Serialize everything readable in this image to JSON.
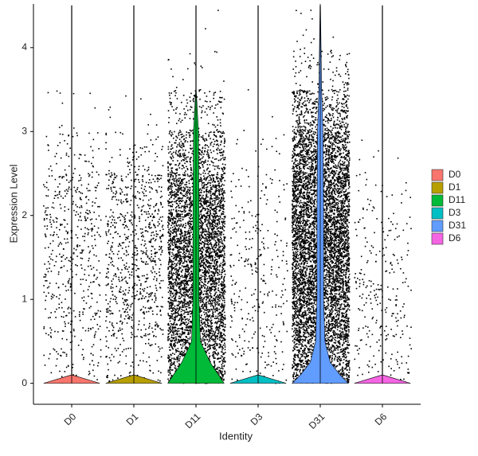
{
  "chart_data": {
    "type": "violin",
    "xlabel": "Identity",
    "ylabel": "Expression Level",
    "categories": [
      "D0",
      "D1",
      "D11",
      "D3",
      "D31",
      "D6"
    ],
    "colors": [
      "#f8766d",
      "#b79f00",
      "#00ba38",
      "#00bfc4",
      "#619cff",
      "#f564e3"
    ],
    "ylim": [
      -0.25,
      4.52
    ],
    "yticks": [
      0,
      1,
      2,
      3,
      4
    ],
    "max": [
      3.48,
      3.25,
      4.2,
      3.03,
      4.52,
      2.73
    ],
    "density_levels": [
      0,
      0.1,
      0.25,
      0.5,
      1,
      2,
      3,
      3.5,
      4.5
    ],
    "density": [
      [
        1,
        0,
        0,
        0,
        0,
        0,
        0,
        0,
        0
      ],
      [
        1,
        0,
        0,
        0,
        0,
        0,
        0,
        0,
        0
      ],
      [
        1,
        0.8,
        0.5,
        0.15,
        0.1,
        0.1,
        0.08,
        0,
        0
      ],
      [
        1,
        0,
        0,
        0,
        0,
        0,
        0,
        0,
        0
      ],
      [
        1,
        0.7,
        0.35,
        0.16,
        0.11,
        0.11,
        0.09,
        0.04,
        0
      ],
      [
        1,
        0,
        0,
        0,
        0,
        0,
        0,
        0,
        0
      ]
    ],
    "point_bins": [
      0,
      0.5,
      1,
      1.5,
      2,
      2.5,
      3,
      3.5,
      4,
      4.5
    ],
    "point_counts": [
      [
        60,
        90,
        110,
        130,
        120,
        50,
        10,
        0,
        0
      ],
      [
        80,
        160,
        200,
        220,
        170,
        60,
        8,
        0,
        0
      ],
      [
        700,
        900,
        1000,
        1000,
        800,
        400,
        120,
        15,
        2
      ],
      [
        60,
        70,
        70,
        60,
        40,
        15,
        3,
        0,
        0
      ],
      [
        800,
        1000,
        1200,
        1300,
        1200,
        900,
        400,
        80,
        10
      ],
      [
        50,
        70,
        70,
        50,
        25,
        6,
        0,
        0,
        0
      ]
    ]
  }
}
